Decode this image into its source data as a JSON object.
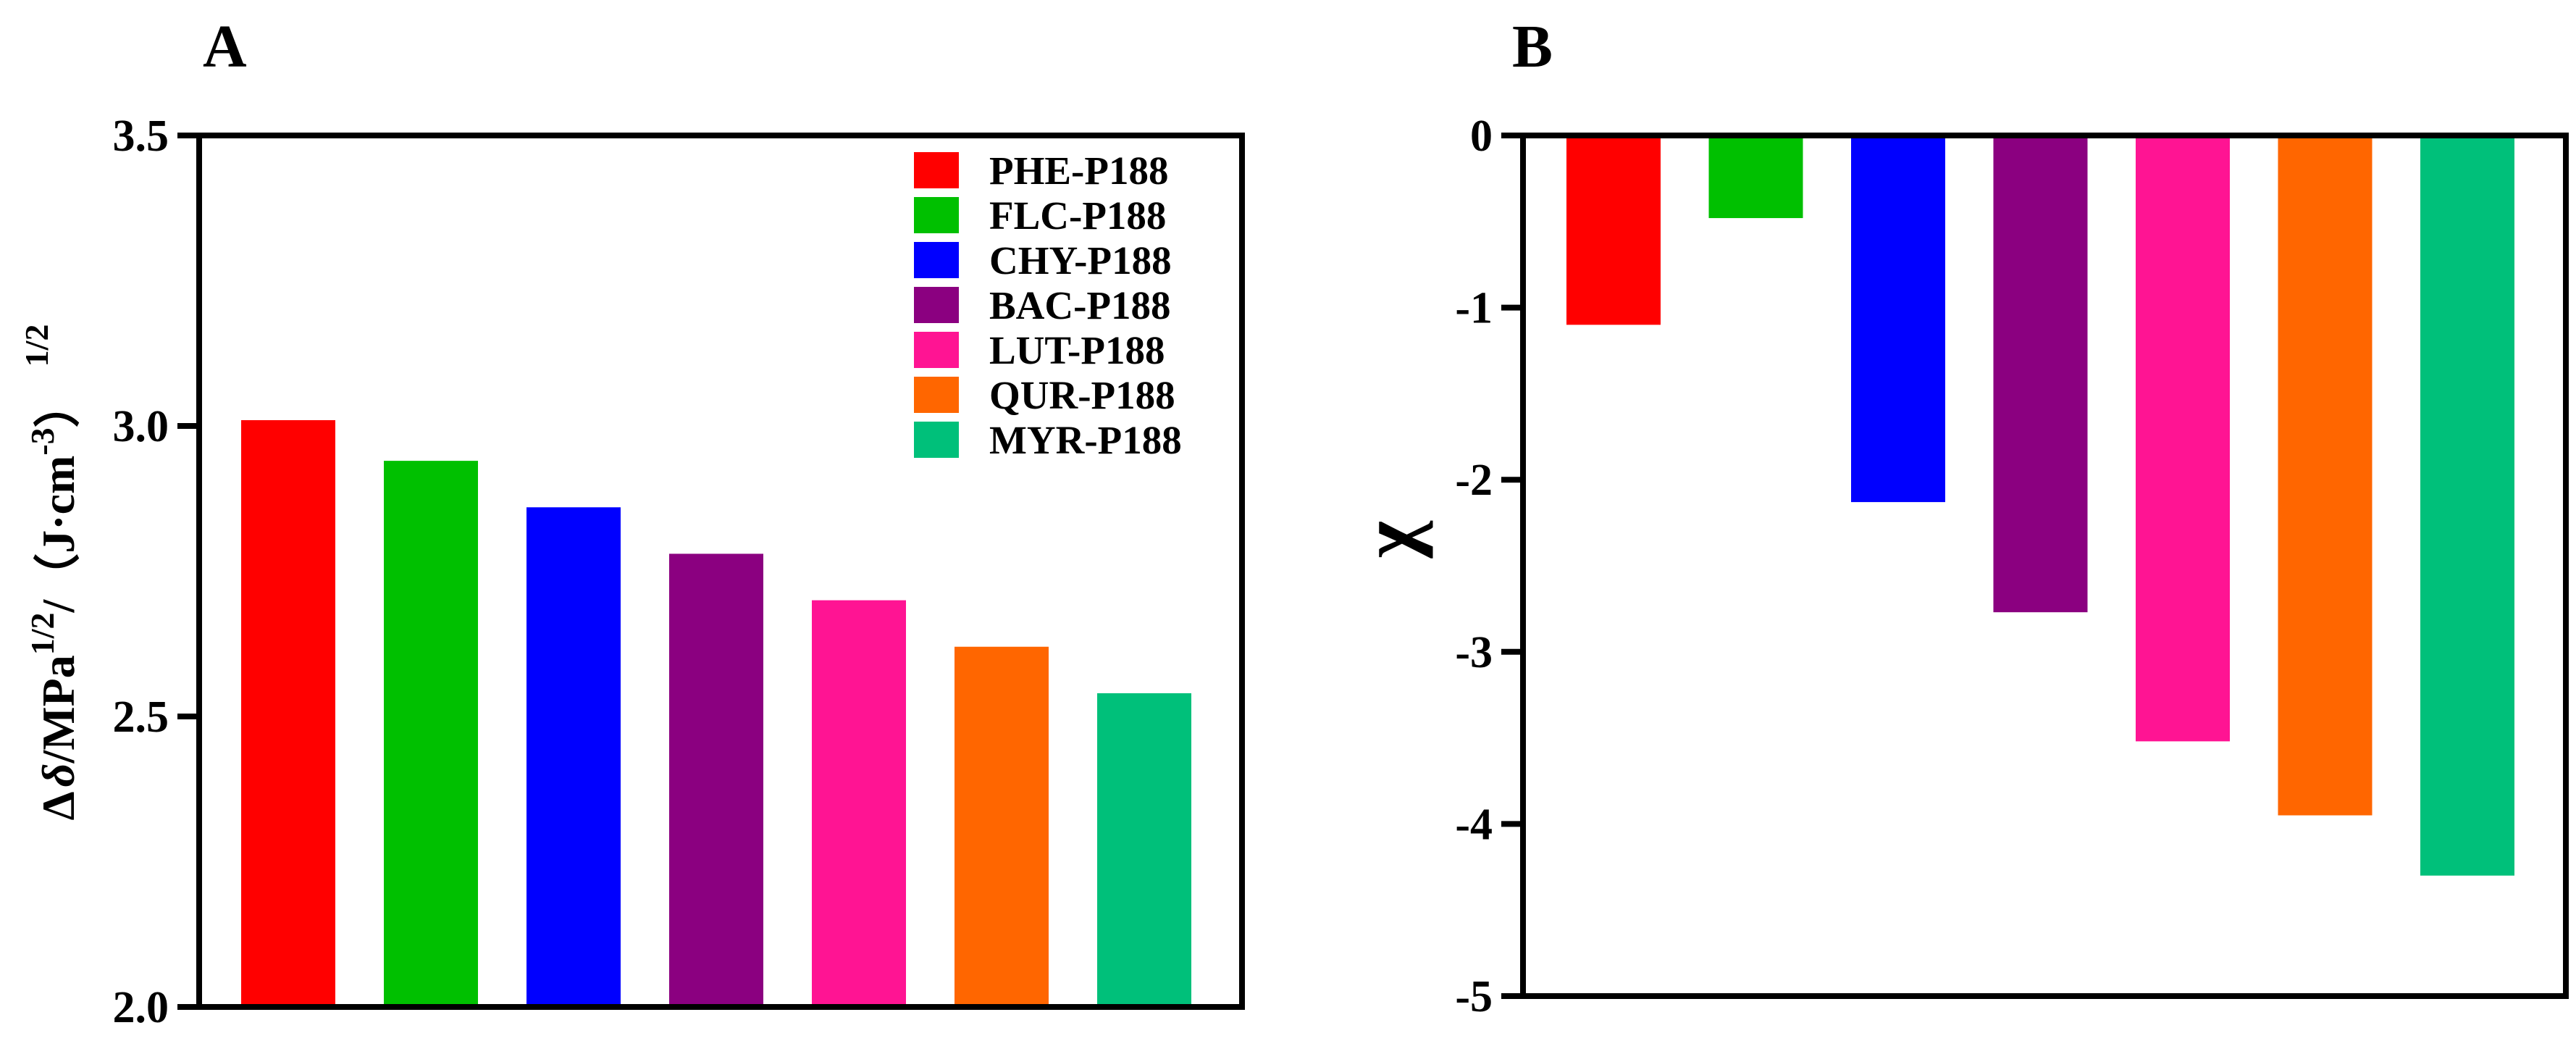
{
  "chart_data": [
    {
      "panel_label": "A",
      "type": "bar",
      "categories": [
        "PHE-P188",
        "FLC-P188",
        "CHY-P188",
        "BAC-P188",
        "LUT-P188",
        "QUR-P188",
        "MYR-P188"
      ],
      "values": [
        3.01,
        2.94,
        2.86,
        2.78,
        2.7,
        2.62,
        2.54
      ],
      "colors": [
        "#ff0000",
        "#00c000",
        "#0000ff",
        "#8b0080",
        "#ff1493",
        "#ff6600",
        "#00c07a"
      ],
      "ylim": [
        2.0,
        3.5
      ],
      "yticks": [
        "2.0",
        "2.5",
        "3.0",
        "3.5"
      ],
      "ylabel": {
        "delta": "Δ",
        "delta_sym": "δ",
        "mpa": "/MPa",
        "sup1": "1/2",
        "slash": "/",
        "paren_open": "（",
        "jcm": "J·cm",
        "sup2": "-3",
        "paren_close": "）",
        "sup3": "1/2"
      },
      "legend": [
        "PHE-P188",
        "FLC-P188",
        "CHY-P188",
        "BAC-P188",
        "LUT-P188",
        "QUR-P188",
        "MYR-P188"
      ],
      "legend_position": "top-right"
    },
    {
      "panel_label": "B",
      "type": "bar",
      "categories": [
        "PHE-P188",
        "FLC-P188",
        "CHY-P188",
        "BAC-P188",
        "LUT-P188",
        "QUR-P188",
        "MYR-P188"
      ],
      "values": [
        -1.1,
        -0.48,
        -2.13,
        -2.77,
        -3.52,
        -3.95,
        -4.3
      ],
      "colors": [
        "#ff0000",
        "#00c000",
        "#0000ff",
        "#8b0080",
        "#ff1493",
        "#ff6600",
        "#00c07a"
      ],
      "ylim": [
        -5,
        0
      ],
      "yticks": [
        "0",
        "-1",
        "-2",
        "-3",
        "-4",
        "-5"
      ],
      "ylabel": "χ"
    }
  ]
}
